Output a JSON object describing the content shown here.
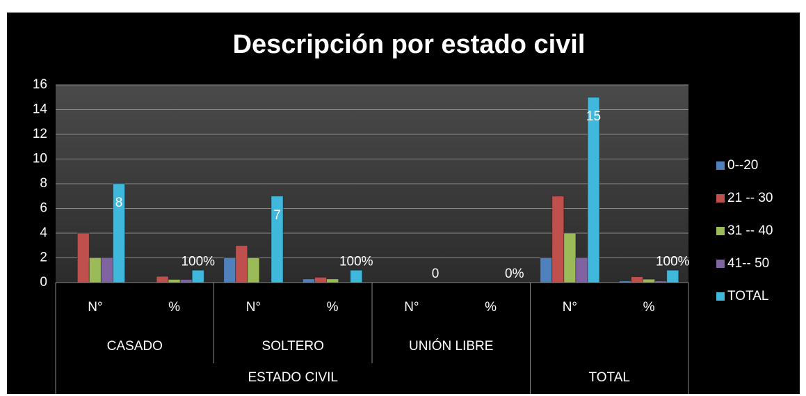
{
  "chart_data": {
    "type": "bar",
    "title": "Descripción por estado civil",
    "categories": [
      "N°",
      "%",
      "N°",
      "%",
      "N°",
      "%",
      "N°",
      "%"
    ],
    "category_levels": [
      [
        "CASADO",
        "CASADO",
        "SOLTERO",
        "SOLTERO",
        "UNIÓN LIBRE",
        "UNIÓN LIBRE",
        null,
        null
      ],
      [
        "ESTADO CIVIL",
        "ESTADO CIVIL",
        "ESTADO CIVIL",
        "ESTADO CIVIL",
        "ESTADO CIVIL",
        "ESTADO CIVIL",
        "TOTAL",
        "TOTAL"
      ]
    ],
    "series": [
      {
        "name": "0--20",
        "color": "#4f81bd",
        "values": [
          0,
          0,
          2,
          0.29,
          0,
          0,
          2,
          0.13
        ]
      },
      {
        "name": "21 -- 30",
        "color": "#c0504d",
        "values": [
          4,
          0.5,
          3,
          0.43,
          0,
          0,
          7,
          0.47
        ]
      },
      {
        "name": "31 -- 40",
        "color": "#9bbb59",
        "values": [
          2,
          0.25,
          2,
          0.29,
          0,
          0,
          4,
          0.27
        ]
      },
      {
        "name": "41-- 50",
        "color": "#8064a2",
        "values": [
          2,
          0.25,
          0,
          0,
          0,
          0,
          2,
          0.13
        ]
      },
      {
        "name": "TOTAL",
        "color": "#3fb8dc",
        "values": [
          8,
          1,
          7,
          1,
          0,
          0,
          15,
          1
        ],
        "value_labels": [
          "8",
          "100%",
          "7",
          "100%",
          "0",
          "0%",
          "15",
          "100%"
        ]
      }
    ],
    "ylim": [
      0,
      16
    ],
    "yticks": [
      0,
      2,
      4,
      6,
      8,
      10,
      12,
      14,
      16
    ],
    "grid": true,
    "legend": "right"
  }
}
